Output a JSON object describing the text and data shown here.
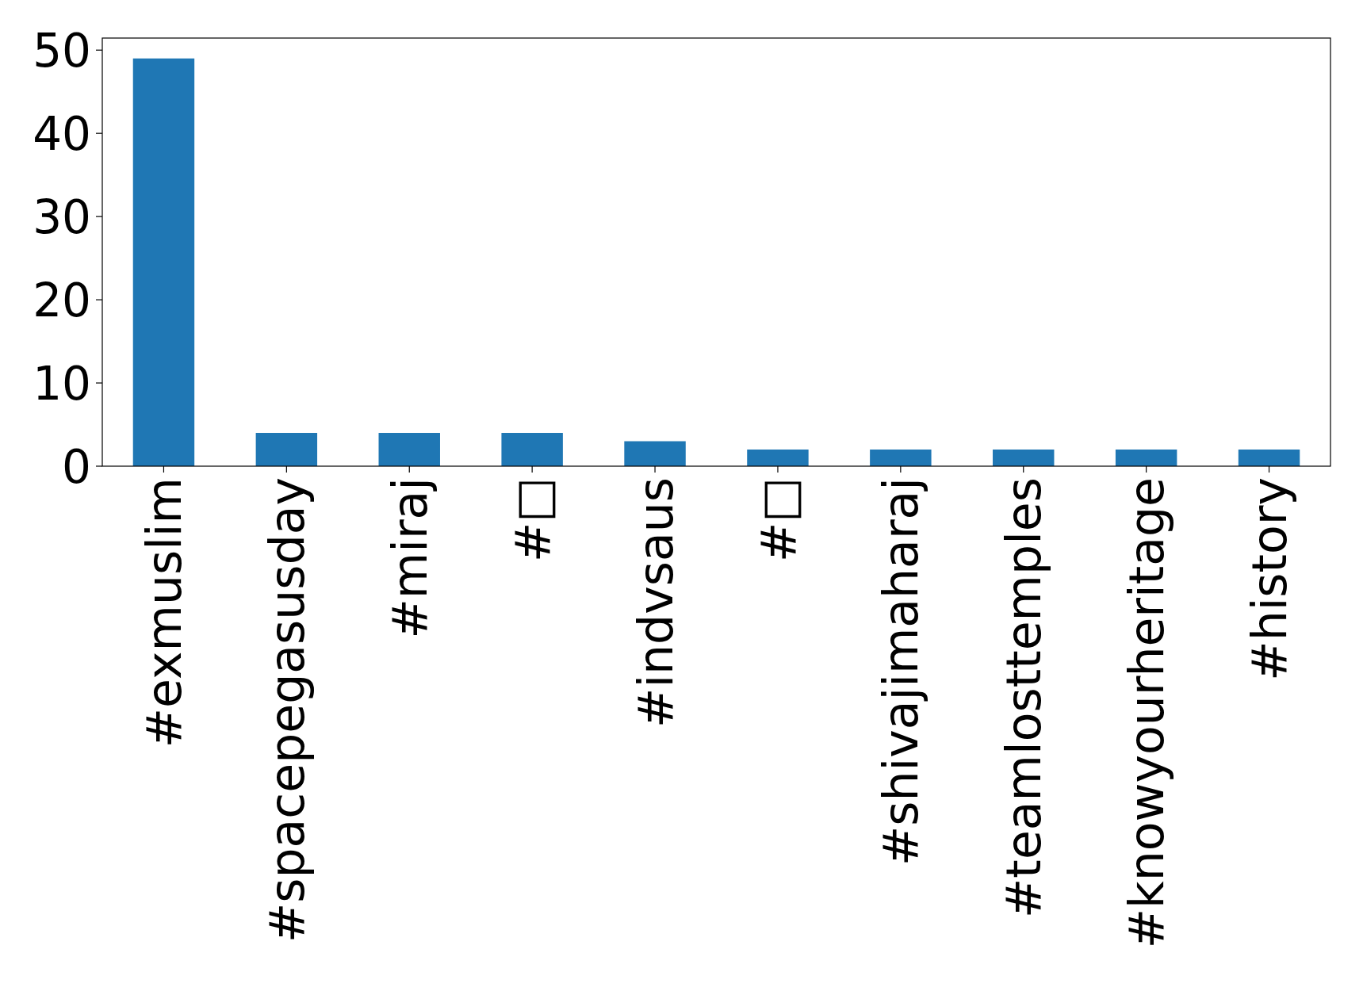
{
  "chart_data": {
    "type": "bar",
    "categories": [
      "#exmuslim",
      "#spacepegasusday",
      "#miraj",
      "#□",
      "#indvsaus",
      "#□",
      "#shivajimaharaj",
      "#teamlosttemples",
      "#knowyourheritage",
      "#history"
    ],
    "values": [
      49,
      4,
      4,
      4,
      3,
      2,
      2,
      2,
      2,
      2
    ],
    "color": "#1f77b4",
    "ylim": [
      0,
      51.45
    ],
    "yticks": [
      0,
      10,
      20,
      30,
      40,
      50
    ]
  }
}
